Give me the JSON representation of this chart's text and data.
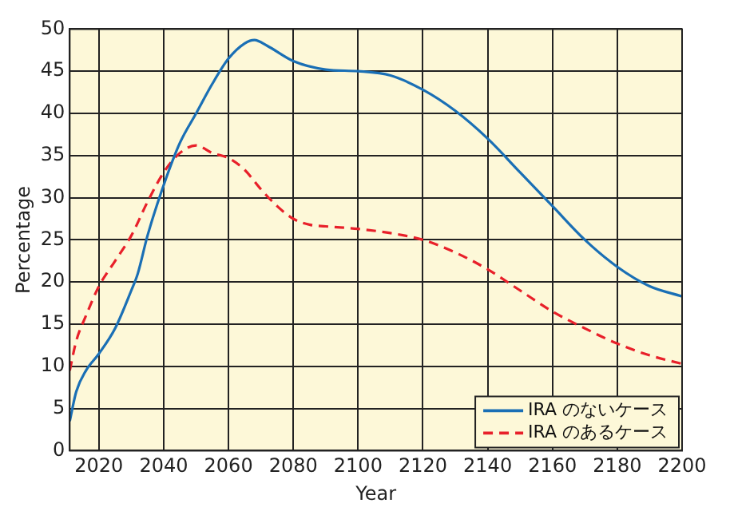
{
  "chart_data": {
    "type": "line",
    "xlabel": "Year",
    "ylabel": "Percentage",
    "xlim": [
      2011,
      2200
    ],
    "xticks": [
      2020,
      2040,
      2060,
      2080,
      2100,
      2120,
      2140,
      2160,
      2180,
      2200
    ],
    "ylim": [
      0,
      50
    ],
    "yticks": [
      0,
      5,
      10,
      15,
      20,
      25,
      30,
      35,
      40,
      45,
      50
    ],
    "grid": true,
    "legend": "bottom right",
    "marker": "none",
    "series": [
      {
        "name": "IRA のないケース",
        "color": "#1a6fb5",
        "line_style": "solid",
        "x": [
          2011,
          2013,
          2016,
          2020,
          2025,
          2030,
          2032,
          2035,
          2040,
          2045,
          2050,
          2055,
          2060,
          2065,
          2068,
          2072,
          2080,
          2090,
          2100,
          2110,
          2120,
          2130,
          2140,
          2150,
          2160,
          2170,
          2180,
          2190,
          2200
        ],
        "values": [
          3.5,
          7,
          9.5,
          11.5,
          14.5,
          19,
          21,
          25.5,
          31.5,
          36.5,
          40,
          43.5,
          46.5,
          48.3,
          48.7,
          48,
          46.2,
          45.2,
          45,
          44.5,
          42.8,
          40.3,
          37,
          33,
          29,
          25,
          21.8,
          19.5,
          18.3
        ]
      },
      {
        "name": "IRA のあるケース",
        "color": "#e8202a",
        "line_style": "dashed",
        "x": [
          2011,
          2013,
          2016,
          2020,
          2025,
          2030,
          2035,
          2040,
          2045,
          2050,
          2055,
          2060,
          2065,
          2070,
          2075,
          2080,
          2085,
          2090,
          2100,
          2110,
          2120,
          2130,
          2140,
          2150,
          2160,
          2170,
          2180,
          2190,
          2200
        ],
        "values": [
          9.5,
          13,
          16,
          19.5,
          22.5,
          25.5,
          29.5,
          33,
          35.3,
          36.2,
          35.3,
          34.7,
          33.3,
          31,
          29,
          27.5,
          26.8,
          26.6,
          26.3,
          25.8,
          25,
          23.5,
          21.5,
          19,
          16.5,
          14.5,
          12.7,
          11.3,
          10.3
        ]
      }
    ]
  }
}
